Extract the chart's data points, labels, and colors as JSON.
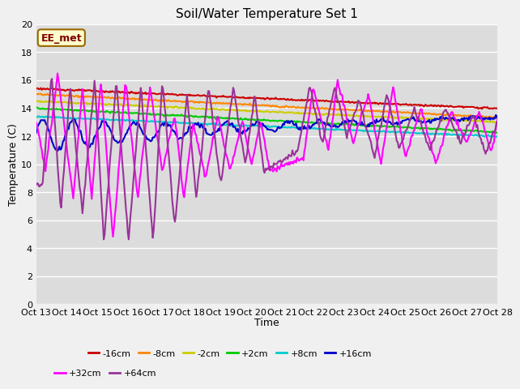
{
  "title": "Soil/Water Temperature Set 1",
  "xlabel": "Time",
  "ylabel": "Temperature (C)",
  "ylim": [
    0,
    20
  ],
  "yticks": [
    0,
    2,
    4,
    6,
    8,
    10,
    12,
    14,
    16,
    18,
    20
  ],
  "bg_color": "#dcdcdc",
  "fig_color": "#f0f0f0",
  "grid_color": "#ffffff",
  "annotation_text": "EE_met",
  "annotation_bg": "#ffffcc",
  "annotation_border": "#996600",
  "series_order": [
    "-16cm",
    "-8cm",
    "-2cm",
    "+2cm",
    "+8cm",
    "+16cm",
    "+32cm",
    "+64cm"
  ],
  "series_colors": {
    "-16cm": "#cc0000",
    "-8cm": "#ff8800",
    "-2cm": "#cccc00",
    "+2cm": "#00cc00",
    "+8cm": "#00cccc",
    "+16cm": "#0000cc",
    "+32cm": "#ff00ff",
    "+64cm": "#993399"
  },
  "xtick_labels": [
    "Oct 13",
    "Oct 14",
    "Oct 15",
    "Oct 16",
    "Oct 17",
    "Oct 18",
    "Oct 19",
    "Oct 20",
    "Oct 21",
    "Oct 22",
    "Oct 23",
    "Oct 24",
    "Oct 25",
    "Oct 26",
    "Oct 27",
    "Oct 28"
  ],
  "legend_row1": [
    "-16cm",
    "-8cm",
    "-2cm",
    "+2cm",
    "+8cm",
    "+16cm"
  ],
  "legend_row2": [
    "+32cm",
    "+64cm"
  ]
}
